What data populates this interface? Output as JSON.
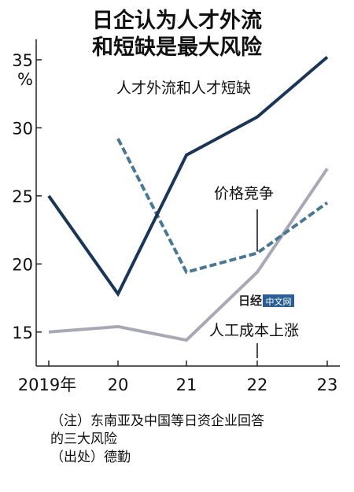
{
  "title": {
    "line1": "日企认为人才外流",
    "line2": "和短缺是最大风险"
  },
  "notes": {
    "note_line1": "（注）东南亚及中国等日资企业回答",
    "note_line2": "的三大风险",
    "source": "（出处）德勤"
  },
  "watermark": {
    "brand": "日经",
    "site": "中文网"
  },
  "chart_data": {
    "type": "line",
    "x": [
      "2019年",
      "20",
      "21",
      "22",
      "23"
    ],
    "y_unit": "%",
    "ylim": [
      12.5,
      36.5
    ],
    "yticks": [
      15,
      20,
      25,
      30,
      35
    ],
    "grid": false,
    "series": [
      {
        "name": "人才外流和人才短缺",
        "values": [
          25,
          17.8,
          28,
          30.8,
          35.2
        ],
        "color": "#1b3556",
        "style": "solid"
      },
      {
        "name": "价格竞争",
        "values": [
          null,
          29.2,
          19.4,
          20.8,
          24.5
        ],
        "color": "#4a7792",
        "style": "dashed"
      },
      {
        "name": "人工成本上涨",
        "values": [
          15,
          15.4,
          14.4,
          19.4,
          27
        ],
        "color": "#a9a9b6",
        "style": "solid"
      }
    ]
  }
}
